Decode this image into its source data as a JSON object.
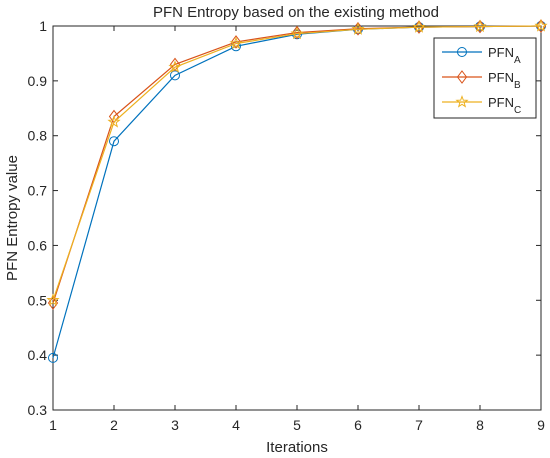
{
  "chart_data": {
    "type": "line",
    "title": "PFN Entropy based on the existing method",
    "xlabel": "Iterations",
    "ylabel": "PFN Entropy value",
    "xlim": [
      1,
      9
    ],
    "ylim": [
      0.3,
      1.0
    ],
    "xticks": [
      "1",
      "2",
      "3",
      "4",
      "5",
      "6",
      "7",
      "8",
      "9"
    ],
    "yticks": [
      "0.3",
      "0.4",
      "0.5",
      "0.6",
      "0.7",
      "0.8",
      "0.9",
      "1"
    ],
    "grid": false,
    "legend_position": "top-right",
    "x": [
      1,
      2,
      3,
      4,
      5,
      6,
      7,
      8,
      9
    ],
    "series": [
      {
        "name": "PFN",
        "subscript": "A",
        "color": "#0072BD",
        "marker": "circle",
        "values": [
          0.395,
          0.79,
          0.91,
          0.963,
          0.985,
          0.994,
          0.998,
          0.999,
          1.0
        ]
      },
      {
        "name": "PFN",
        "subscript": "B",
        "color": "#D95319",
        "marker": "diamond",
        "values": [
          0.495,
          0.835,
          0.93,
          0.971,
          0.988,
          0.995,
          0.998,
          0.999,
          1.0
        ]
      },
      {
        "name": "PFN",
        "subscript": "C",
        "color": "#EDB120",
        "marker": "pentagram",
        "values": [
          0.5,
          0.825,
          0.925,
          0.968,
          0.986,
          0.994,
          0.998,
          0.999,
          1.0
        ]
      }
    ]
  }
}
